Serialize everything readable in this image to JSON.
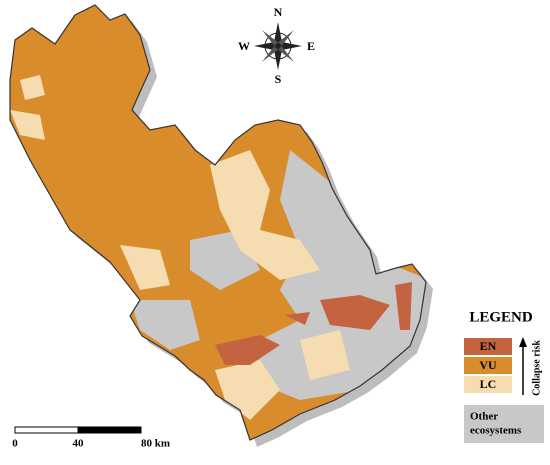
{
  "compass": {
    "north": "N",
    "south": "S",
    "east": "E",
    "west": "W"
  },
  "legend": {
    "title": "LEGEND",
    "items": [
      {
        "label": "EN",
        "color": "#c4633f"
      },
      {
        "label": "VU",
        "color": "#d88c2c"
      },
      {
        "label": "LC",
        "color": "#f5ddb1"
      }
    ],
    "axis_label": "Collapse risk",
    "other": {
      "lines": [
        "Other",
        "ecosystems"
      ],
      "color": "#c8c8c8"
    }
  },
  "scale_bar": {
    "labels": [
      "0",
      "40",
      "80 km"
    ]
  }
}
